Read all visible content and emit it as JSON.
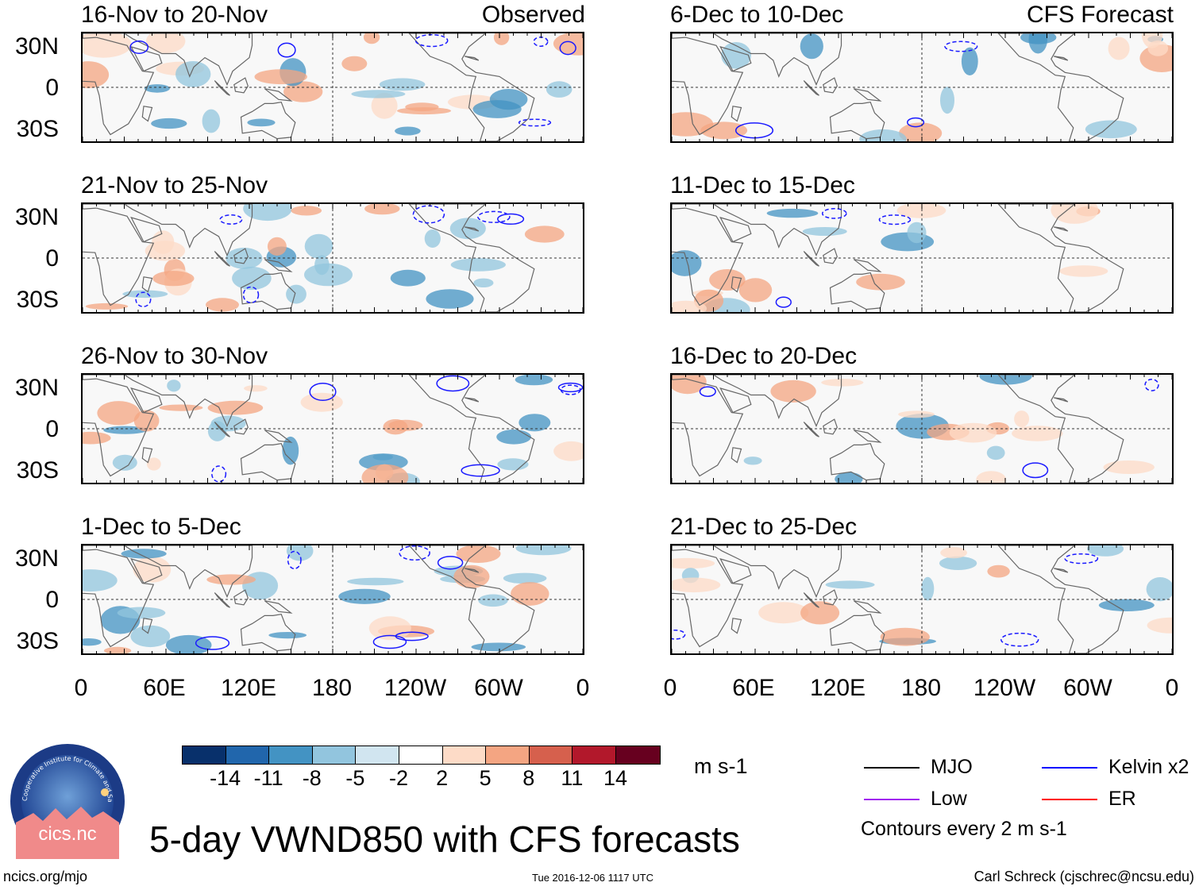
{
  "left_column": {
    "header_right": "Observed",
    "panels": [
      {
        "title": "16-Nov to 20-Nov"
      },
      {
        "title": "21-Nov to 25-Nov"
      },
      {
        "title": "26-Nov to 30-Nov"
      },
      {
        "title": "1-Dec to 5-Dec"
      }
    ]
  },
  "right_column": {
    "header_right": "CFS Forecast",
    "panels": [
      {
        "title": "6-Dec to 10-Dec"
      },
      {
        "title": "11-Dec to 15-Dec"
      },
      {
        "title": "16-Dec to 20-Dec"
      },
      {
        "title": "21-Dec to 25-Dec"
      }
    ]
  },
  "lat_labels": [
    "30N",
    "0",
    "30S"
  ],
  "lon_labels": [
    "0",
    "60E",
    "120E",
    "180",
    "120W",
    "60W",
    "0"
  ],
  "colorbar": {
    "units": "m s-1",
    "colors": [
      "#08306b",
      "#2166ac",
      "#4393c3",
      "#92c5de",
      "#d1e5f0",
      "#ffffff",
      "#fddbc7",
      "#f4a582",
      "#d6604d",
      "#b2182b",
      "#67001f"
    ],
    "ticks": [
      "-14",
      "-11",
      "-8",
      "-5",
      "-2",
      "2",
      "5",
      "8",
      "11",
      "14"
    ]
  },
  "legend": {
    "items": [
      {
        "label": "MJO",
        "color": "#000000"
      },
      {
        "label": "Kelvin x2",
        "color": "#0000ff"
      },
      {
        "label": "Low",
        "color": "#a020f0"
      },
      {
        "label": "ER",
        "color": "#ff0000"
      }
    ],
    "note": "Contours every 2 m s-1"
  },
  "main_title": "5-day VWND850 with CFS forecasts",
  "logo_text": "cics.nc",
  "logo_ring_text": "Cooperative Institute for Climate and Satellites",
  "footer": {
    "left": "ncics.org/mjo",
    "center": "Tue 2016-12-06 1117 UTC",
    "right": "Carl Schreck (cjschrec@ncsu.edu)"
  }
}
